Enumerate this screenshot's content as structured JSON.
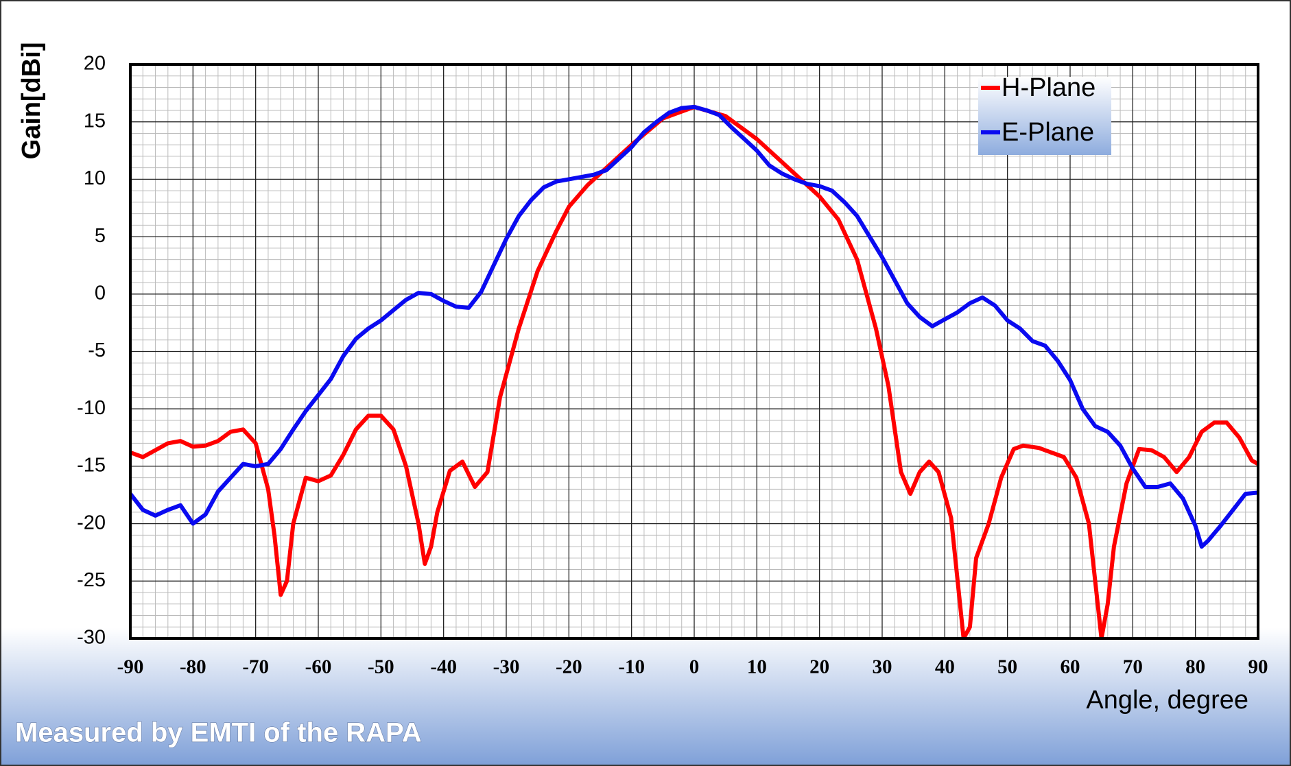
{
  "chart_data": {
    "type": "line",
    "xlabel": "Angle, degree",
    "ylabel": "Gain[dBi]",
    "footer": "Measured by EMTI of the RAPA",
    "xlim": [
      -90,
      90
    ],
    "xticks": [
      -90,
      -80,
      -70,
      -60,
      -50,
      -40,
      -30,
      -20,
      -10,
      0,
      10,
      20,
      30,
      40,
      50,
      60,
      70,
      80,
      90
    ],
    "ylim": [
      -30,
      20
    ],
    "yticks": [
      -30,
      -25,
      -20,
      -15,
      -10,
      -5,
      0,
      5,
      10,
      15,
      20
    ],
    "grid": true,
    "legend": "upper right",
    "series": [
      {
        "name": "H-Plane",
        "color": "#ff0000",
        "x": [
          -90,
          -88,
          -86,
          -84,
          -82,
          -80,
          -78,
          -76,
          -74,
          -72,
          -70,
          -68,
          -67,
          -66,
          -65,
          -64,
          -62,
          -60,
          -58,
          -56,
          -54,
          -52,
          -50,
          -48,
          -46,
          -44,
          -43,
          -42,
          -41,
          -39,
          -37,
          -35,
          -33,
          -31,
          -28,
          -25,
          -22,
          -20,
          -17,
          -15,
          -12,
          -10,
          -5,
          0,
          5,
          10,
          15,
          20,
          23,
          26,
          29,
          31,
          33,
          34.5,
          36,
          37.5,
          39,
          41,
          43,
          44,
          45,
          47,
          49,
          51,
          52.5,
          55,
          57,
          59,
          61,
          63,
          65,
          66,
          67,
          69,
          71,
          73,
          75,
          77,
          79,
          81,
          83,
          85,
          87,
          89,
          90
        ],
        "values": [
          -13.8,
          -14.2,
          -13.6,
          -13.0,
          -12.8,
          -13.3,
          -13.2,
          -12.8,
          -12.0,
          -11.8,
          -13.0,
          -17,
          -21,
          -26.2,
          -25,
          -20,
          -16,
          -16.3,
          -15.8,
          -14,
          -11.8,
          -10.6,
          -10.6,
          -11.8,
          -15,
          -20,
          -23.5,
          -22,
          -19,
          -15.4,
          -14.6,
          -16.8,
          -15.5,
          -9,
          -3,
          2,
          5.5,
          7.6,
          9.5,
          10.5,
          12,
          13,
          15.3,
          16.3,
          15.5,
          13.5,
          11,
          8.5,
          6.5,
          3,
          -3,
          -8,
          -15.5,
          -17.4,
          -15.5,
          -14.6,
          -15.5,
          -19.5,
          -30,
          -29,
          -23,
          -20,
          -16,
          -13.5,
          -13.2,
          -13.4,
          -13.8,
          -14.2,
          -16,
          -20,
          -30,
          -27,
          -22,
          -16.5,
          -13.5,
          -13.6,
          -14.2,
          -15.5,
          -14.2,
          -12,
          -11.2,
          -11.2,
          -12.5,
          -14.5,
          -14.8
        ]
      },
      {
        "name": "E-Plane",
        "color": "#0a0af0",
        "x": [
          -90,
          -88,
          -86,
          -84,
          -82,
          -80,
          -78,
          -76,
          -74,
          -72,
          -70,
          -68,
          -66,
          -64,
          -62,
          -60,
          -58,
          -56,
          -54,
          -52,
          -50,
          -48,
          -46,
          -44,
          -42,
          -40,
          -38,
          -36,
          -34,
          -32,
          -30,
          -28,
          -26,
          -24,
          -22,
          -20,
          -18,
          -16,
          -14,
          -12,
          -10,
          -8,
          -6,
          -4,
          -2,
          0,
          2,
          4,
          6,
          8,
          10,
          12,
          14,
          16,
          18,
          20,
          22,
          24,
          26,
          28,
          30,
          32,
          34,
          36,
          38,
          40,
          42,
          44,
          46,
          48,
          50,
          52,
          54,
          56,
          58,
          60,
          62,
          64,
          66,
          68,
          70,
          72,
          74,
          76,
          78,
          80,
          81,
          82,
          84,
          86,
          88,
          90
        ],
        "values": [
          -17.4,
          -18.8,
          -19.3,
          -18.8,
          -18.4,
          -20.0,
          -19.2,
          -17.2,
          -16.0,
          -14.8,
          -15.0,
          -14.8,
          -13.5,
          -11.8,
          -10.2,
          -8.8,
          -7.4,
          -5.4,
          -3.9,
          -3.0,
          -2.3,
          -1.4,
          -0.5,
          0.1,
          0.0,
          -0.6,
          -1.1,
          -1.2,
          0.2,
          2.5,
          4.8,
          6.8,
          8.2,
          9.3,
          9.8,
          10.0,
          10.2,
          10.4,
          10.8,
          11.8,
          12.8,
          14.1,
          15.0,
          15.8,
          16.2,
          16.3,
          16.0,
          15.6,
          14.5,
          13.5,
          12.5,
          11.2,
          10.5,
          10.0,
          9.6,
          9.4,
          9.0,
          8.0,
          6.8,
          5.0,
          3.2,
          1.2,
          -0.8,
          -2.0,
          -2.8,
          -2.2,
          -1.6,
          -0.8,
          -0.3,
          -1.0,
          -2.3,
          -3.0,
          -4.1,
          -4.5,
          -5.8,
          -7.5,
          -10.0,
          -11.5,
          -12.0,
          -13.2,
          -15.2,
          -16.8,
          -16.8,
          -16.5,
          -17.8,
          -20.2,
          -22.0,
          -21.5,
          -20.2,
          -18.8,
          -17.4,
          -17.3
        ]
      }
    ]
  }
}
